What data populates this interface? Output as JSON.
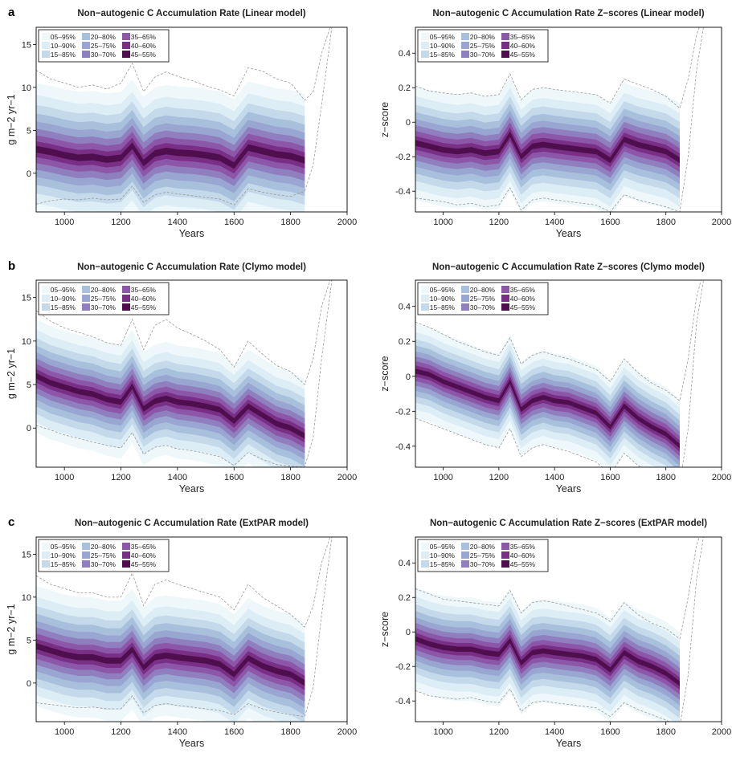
{
  "figure": {
    "x_tick_labels": [
      "1000",
      "1200",
      "1400",
      "1600",
      "1800",
      "2000"
    ],
    "legend_entries": [
      "05–95%",
      "10–90%",
      "15–85%",
      "20–80%",
      "25–75%",
      "30–70%",
      "35–65%",
      "40–60%",
      "45–55%"
    ],
    "band_colors": [
      "#eef8fb",
      "#dcedf5",
      "#c4d9ea",
      "#a9c0dd",
      "#9aa6d2",
      "#8f7fbe",
      "#8c57a8",
      "#7a2f86",
      "#4f0f4f"
    ]
  },
  "chart_data": [
    {
      "type": "area",
      "panel_letter": "a",
      "title": "Non−autogenic C Accumulation Rate (Linear model)",
      "xlabel": "Years",
      "ylabel": "g m−2 yr−1",
      "xlim": [
        900,
        2000
      ],
      "ylim": [
        -4.5,
        17
      ],
      "yticks": [
        0,
        5,
        10,
        15
      ],
      "x": [
        900,
        950,
        1000,
        1050,
        1100,
        1150,
        1200,
        1240,
        1280,
        1320,
        1360,
        1400,
        1450,
        1500,
        1550,
        1600,
        1650,
        1700,
        1750,
        1800,
        1850
      ],
      "median": [
        2.8,
        2.5,
        2.1,
        1.8,
        1.9,
        1.6,
        1.8,
        3.2,
        1.2,
        2.3,
        2.6,
        2.4,
        2.3,
        2.1,
        1.8,
        0.9,
        3.0,
        2.6,
        2.2,
        2.0,
        1.5
      ],
      "spread": 7.7,
      "upper_dashed": [
        12,
        11,
        10.5,
        10,
        10.3,
        9.8,
        10.5,
        12.8,
        9.5,
        11.2,
        11.8,
        11.3,
        10.8,
        10.2,
        9.7,
        9.0,
        12.3,
        11.9,
        11.0,
        10.5,
        8.5,
        9.5,
        14,
        18
      ],
      "lower_dashed": [
        -3.6,
        -3.2,
        -3,
        -3.1,
        -2.9,
        -3.1,
        -3,
        -1.5,
        -3.4,
        -2.5,
        -2.2,
        -2.4,
        -2.6,
        -2.8,
        -3.0,
        -3.7,
        -1.8,
        -2.2,
        -2.5,
        -2.7,
        -2.1,
        1,
        8,
        18
      ],
      "dashed_x": [
        900,
        950,
        1000,
        1050,
        1100,
        1150,
        1200,
        1240,
        1280,
        1320,
        1360,
        1400,
        1450,
        1500,
        1550,
        1600,
        1650,
        1700,
        1750,
        1800,
        1850,
        1880,
        1910,
        1950
      ]
    },
    {
      "type": "area",
      "title": "Non−autogenic C Accumulation Rate Z−scores (Linear model)",
      "xlabel": "Years",
      "ylabel": "z−score",
      "xlim": [
        900,
        2000
      ],
      "ylim": [
        -0.52,
        0.55
      ],
      "yticks": [
        -0.4,
        -0.2,
        0,
        0.2,
        0.4
      ],
      "x": [
        900,
        950,
        1000,
        1050,
        1100,
        1150,
        1200,
        1240,
        1280,
        1320,
        1360,
        1400,
        1450,
        1500,
        1550,
        1600,
        1650,
        1700,
        1750,
        1800,
        1850
      ],
      "median": [
        -0.12,
        -0.14,
        -0.16,
        -0.17,
        -0.16,
        -0.18,
        -0.17,
        -0.07,
        -0.2,
        -0.14,
        -0.13,
        -0.14,
        -0.15,
        -0.16,
        -0.17,
        -0.22,
        -0.1,
        -0.13,
        -0.15,
        -0.17,
        -0.22
      ],
      "spread": 0.33,
      "upper_dashed": [
        0.21,
        0.18,
        0.17,
        0.16,
        0.17,
        0.15,
        0.16,
        0.28,
        0.13,
        0.19,
        0.2,
        0.19,
        0.18,
        0.17,
        0.16,
        0.11,
        0.25,
        0.22,
        0.19,
        0.15,
        0.08,
        0.25,
        0.5,
        0.7
      ],
      "lower_dashed": [
        -0.44,
        -0.45,
        -0.46,
        -0.48,
        -0.47,
        -0.49,
        -0.48,
        -0.38,
        -0.51,
        -0.45,
        -0.44,
        -0.45,
        -0.46,
        -0.47,
        -0.48,
        -0.52,
        -0.42,
        -0.45,
        -0.47,
        -0.49,
        -0.52,
        -0.2,
        0.3,
        0.7
      ],
      "dashed_x": [
        900,
        950,
        1000,
        1050,
        1100,
        1150,
        1200,
        1240,
        1280,
        1320,
        1360,
        1400,
        1450,
        1500,
        1550,
        1600,
        1650,
        1700,
        1750,
        1800,
        1850,
        1880,
        1910,
        1950
      ]
    },
    {
      "type": "area",
      "panel_letter": "b",
      "title": "Non−autogenic C Accumulation Rate (Clymo model)",
      "xlabel": "Years",
      "ylabel": "g m−2 yr−1",
      "xlim": [
        900,
        2000
      ],
      "ylim": [
        -4.5,
        17
      ],
      "yticks": [
        0,
        5,
        10,
        15
      ],
      "x": [
        900,
        950,
        1000,
        1050,
        1100,
        1150,
        1200,
        1240,
        1280,
        1320,
        1360,
        1400,
        1450,
        1500,
        1550,
        1600,
        1650,
        1700,
        1750,
        1800,
        1850
      ],
      "median": [
        6.0,
        5.2,
        4.7,
        4.2,
        3.9,
        3.3,
        3.0,
        4.8,
        2.2,
        3.1,
        3.4,
        3.0,
        2.8,
        2.5,
        2.1,
        0.8,
        2.5,
        1.5,
        0.5,
        0.0,
        -0.9
      ],
      "spread": 6.5,
      "upper_dashed": [
        13.5,
        12.3,
        11.5,
        11.0,
        10.5,
        9.8,
        9.5,
        12.5,
        9.0,
        11.8,
        12.5,
        11.5,
        10.8,
        10.0,
        9.0,
        7.0,
        10.0,
        8.5,
        7.2,
        6.5,
        5.0,
        8,
        14,
        18
      ],
      "lower_dashed": [
        0.3,
        -0.2,
        -0.8,
        -1.2,
        -1.6,
        -2.0,
        -2.3,
        -0.5,
        -3.0,
        -2.2,
        -2.0,
        -2.4,
        -2.6,
        -2.9,
        -3.3,
        -4.3,
        -2.8,
        -3.6,
        -4.2,
        -4.4,
        -4.5,
        -1,
        8,
        18
      ],
      "dashed_x": [
        900,
        950,
        1000,
        1050,
        1100,
        1150,
        1200,
        1240,
        1280,
        1320,
        1360,
        1400,
        1450,
        1500,
        1550,
        1600,
        1650,
        1700,
        1750,
        1800,
        1850,
        1880,
        1910,
        1950
      ]
    },
    {
      "type": "area",
      "title": "Non−autogenic C Accumulation Rate Z−scores (Clymo model)",
      "xlabel": "Years",
      "ylabel": "z−score",
      "xlim": [
        900,
        2000
      ],
      "ylim": [
        -0.52,
        0.55
      ],
      "yticks": [
        -0.4,
        -0.2,
        0,
        0.2,
        0.4
      ],
      "x": [
        900,
        950,
        1000,
        1050,
        1100,
        1150,
        1200,
        1240,
        1280,
        1320,
        1360,
        1400,
        1450,
        1500,
        1550,
        1600,
        1650,
        1700,
        1750,
        1800,
        1850
      ],
      "median": [
        0.03,
        0.01,
        -0.03,
        -0.06,
        -0.09,
        -0.12,
        -0.14,
        -0.03,
        -0.19,
        -0.14,
        -0.12,
        -0.14,
        -0.15,
        -0.18,
        -0.21,
        -0.29,
        -0.17,
        -0.24,
        -0.29,
        -0.33,
        -0.4
      ],
      "spread": 0.27,
      "upper_dashed": [
        0.31,
        0.28,
        0.24,
        0.2,
        0.17,
        0.14,
        0.12,
        0.22,
        0.07,
        0.12,
        0.14,
        0.12,
        0.1,
        0.07,
        0.04,
        -0.03,
        0.1,
        0.02,
        -0.04,
        -0.08,
        -0.14,
        0.1,
        0.45,
        0.7
      ],
      "lower_dashed": [
        -0.24,
        -0.27,
        -0.3,
        -0.33,
        -0.36,
        -0.39,
        -0.41,
        -0.3,
        -0.46,
        -0.41,
        -0.39,
        -0.41,
        -0.43,
        -0.46,
        -0.49,
        -0.56,
        -0.44,
        -0.51,
        -0.56,
        -0.6,
        -0.62,
        -0.3,
        0.3,
        0.7
      ],
      "dashed_x": [
        900,
        950,
        1000,
        1050,
        1100,
        1150,
        1200,
        1240,
        1280,
        1320,
        1360,
        1400,
        1450,
        1500,
        1550,
        1600,
        1650,
        1700,
        1750,
        1800,
        1850,
        1880,
        1910,
        1950
      ]
    },
    {
      "type": "area",
      "panel_letter": "c",
      "title": "Non−autogenic C Accumulation Rate (ExtPAR model)",
      "xlabel": "Years",
      "ylabel": "g m−2 yr−1",
      "xlim": [
        900,
        2000
      ],
      "ylim": [
        -4.5,
        17
      ],
      "yticks": [
        0,
        5,
        10,
        15
      ],
      "x": [
        900,
        950,
        1000,
        1050,
        1100,
        1150,
        1200,
        1240,
        1280,
        1320,
        1360,
        1400,
        1450,
        1500,
        1550,
        1600,
        1650,
        1700,
        1750,
        1800,
        1850
      ],
      "median": [
        4.3,
        3.8,
        3.3,
        3.0,
        3.0,
        2.6,
        2.6,
        3.9,
        1.8,
        3.0,
        3.2,
        3.0,
        2.8,
        2.6,
        2.2,
        1.0,
        2.9,
        2.0,
        1.4,
        1.0,
        0.0
      ],
      "spread": 7.0,
      "upper_dashed": [
        12.5,
        11.5,
        11.0,
        10.5,
        10.5,
        10.0,
        10.0,
        12.8,
        9.0,
        11.5,
        12.0,
        11.5,
        11.0,
        10.5,
        10.0,
        8.5,
        11.5,
        10.0,
        9.0,
        8.0,
        6.5,
        9,
        14,
        18
      ],
      "lower_dashed": [
        -2.3,
        -2.5,
        -2.7,
        -2.9,
        -2.8,
        -3.0,
        -3.0,
        -1.5,
        -3.5,
        -2.6,
        -2.4,
        -2.6,
        -2.8,
        -3.0,
        -3.2,
        -3.7,
        -2.4,
        -3.0,
        -3.4,
        -3.7,
        -3.9,
        -0.5,
        8,
        18
      ],
      "dashed_x": [
        900,
        950,
        1000,
        1050,
        1100,
        1150,
        1200,
        1240,
        1280,
        1320,
        1360,
        1400,
        1450,
        1500,
        1550,
        1600,
        1650,
        1700,
        1750,
        1800,
        1850,
        1880,
        1910,
        1950
      ]
    },
    {
      "type": "area",
      "title": "Non−autogenic C Accumulation Rate Z−scores (ExtPAR model)",
      "xlabel": "Years",
      "ylabel": "z−score",
      "xlim": [
        900,
        2000
      ],
      "ylim": [
        -0.52,
        0.55
      ],
      "yticks": [
        -0.4,
        -0.2,
        0,
        0.2,
        0.4
      ],
      "x": [
        900,
        950,
        1000,
        1050,
        1100,
        1150,
        1200,
        1240,
        1280,
        1320,
        1360,
        1400,
        1450,
        1500,
        1550,
        1600,
        1650,
        1700,
        1750,
        1800,
        1850
      ],
      "median": [
        -0.04,
        -0.07,
        -0.09,
        -0.1,
        -0.1,
        -0.12,
        -0.13,
        -0.05,
        -0.18,
        -0.12,
        -0.11,
        -0.12,
        -0.13,
        -0.14,
        -0.16,
        -0.22,
        -0.12,
        -0.17,
        -0.2,
        -0.24,
        -0.3
      ],
      "spread": 0.3,
      "upper_dashed": [
        0.25,
        0.22,
        0.19,
        0.18,
        0.17,
        0.16,
        0.15,
        0.24,
        0.11,
        0.17,
        0.18,
        0.17,
        0.15,
        0.13,
        0.11,
        0.06,
        0.17,
        0.1,
        0.05,
        0.02,
        -0.04,
        0.2,
        0.5,
        0.7
      ],
      "lower_dashed": [
        -0.34,
        -0.37,
        -0.38,
        -0.39,
        -0.38,
        -0.4,
        -0.41,
        -0.33,
        -0.46,
        -0.41,
        -0.4,
        -0.41,
        -0.42,
        -0.43,
        -0.44,
        -0.49,
        -0.41,
        -0.45,
        -0.48,
        -0.51,
        -0.55,
        -0.25,
        0.3,
        0.7
      ],
      "dashed_x": [
        900,
        950,
        1000,
        1050,
        1100,
        1150,
        1200,
        1240,
        1280,
        1320,
        1360,
        1400,
        1450,
        1500,
        1550,
        1600,
        1650,
        1700,
        1750,
        1800,
        1850,
        1880,
        1910,
        1950
      ]
    }
  ]
}
